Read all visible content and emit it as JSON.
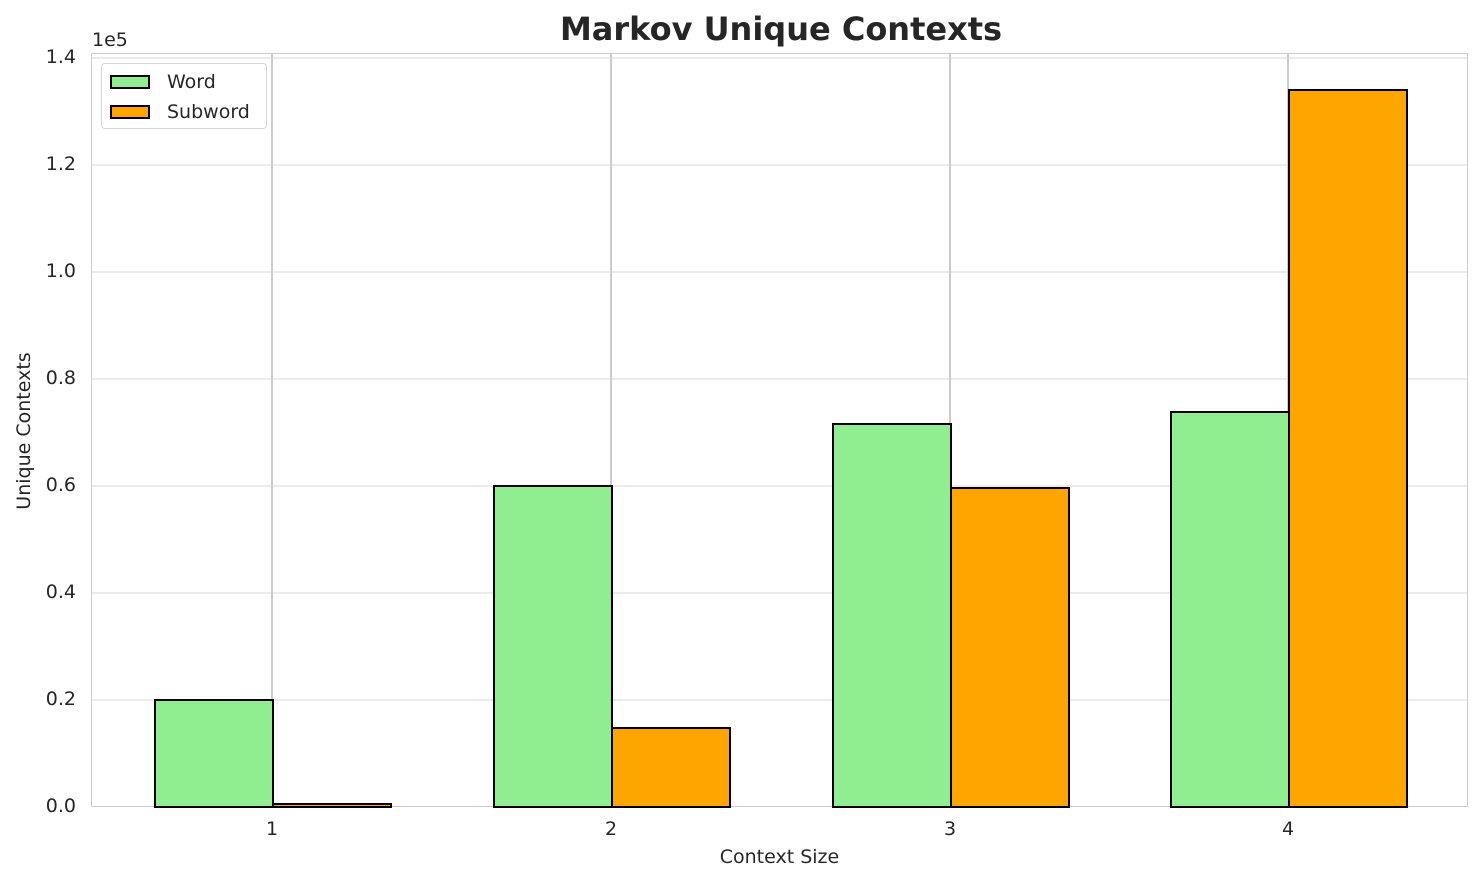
{
  "chart_data": {
    "type": "bar",
    "title": "Markov Unique Contexts",
    "xlabel": "Context Size",
    "ylabel": "Unique Contexts",
    "y_offset_label": "1e5",
    "categories": [
      "1",
      "2",
      "3",
      "4"
    ],
    "series": [
      {
        "name": "Word",
        "color": "#90ee90",
        "values": [
          20200,
          60200,
          71800,
          74000
        ]
      },
      {
        "name": "Subword",
        "color": "#ffa500",
        "values": [
          700,
          14900,
          59800,
          134200
        ]
      }
    ],
    "ylim": [
      0,
      140000
    ],
    "yticks": [
      "0.0",
      "0.2",
      "0.4",
      "0.6",
      "0.8",
      "1.0",
      "1.2",
      "1.4"
    ],
    "grid": true,
    "legend_position": "upper left"
  }
}
